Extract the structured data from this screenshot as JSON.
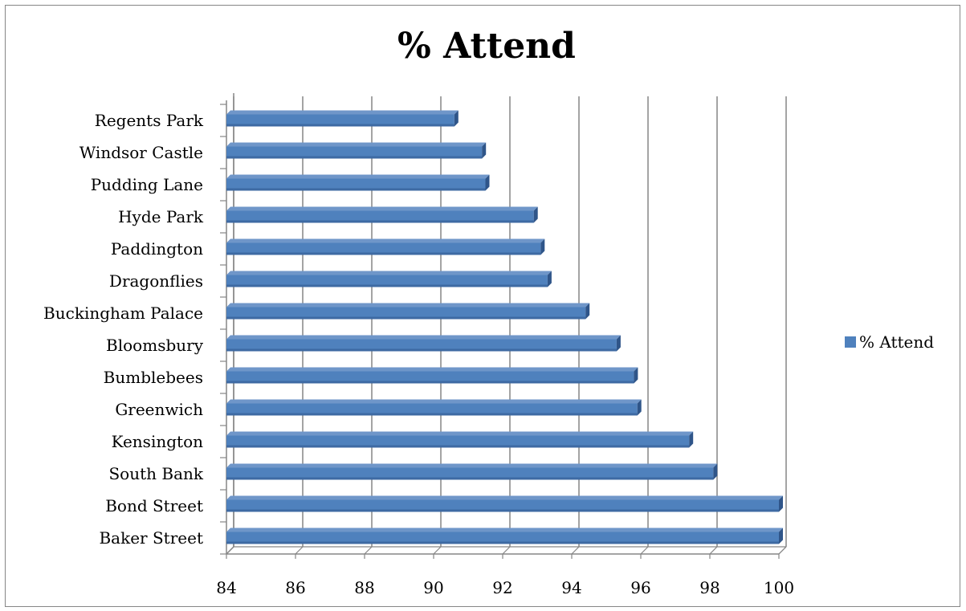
{
  "chart_data": {
    "type": "bar",
    "orientation": "horizontal",
    "style": "3d",
    "title": "% Attend",
    "categories": [
      "Regents Park",
      "Windsor Castle",
      "Pudding Lane",
      "Hyde Park",
      "Paddington",
      "Dragonflies",
      "Buckingham Palace",
      "Bloomsbury",
      "Bumblebees",
      "Greenwich",
      "Kensington",
      "South Bank",
      "Bond Street",
      "Baker Street"
    ],
    "series": [
      {
        "name": "% Attend",
        "values": [
          90.6,
          91.4,
          91.5,
          92.9,
          93.1,
          93.3,
          94.4,
          95.3,
          95.8,
          95.9,
          97.4,
          98.1,
          100,
          100
        ],
        "color": "#4f81bd"
      }
    ],
    "xlim": [
      84,
      100
    ],
    "xticks": [
      "84",
      "86",
      "88",
      "90",
      "92",
      "94",
      "96",
      "98",
      "100"
    ],
    "grid": true,
    "legend": "right"
  }
}
